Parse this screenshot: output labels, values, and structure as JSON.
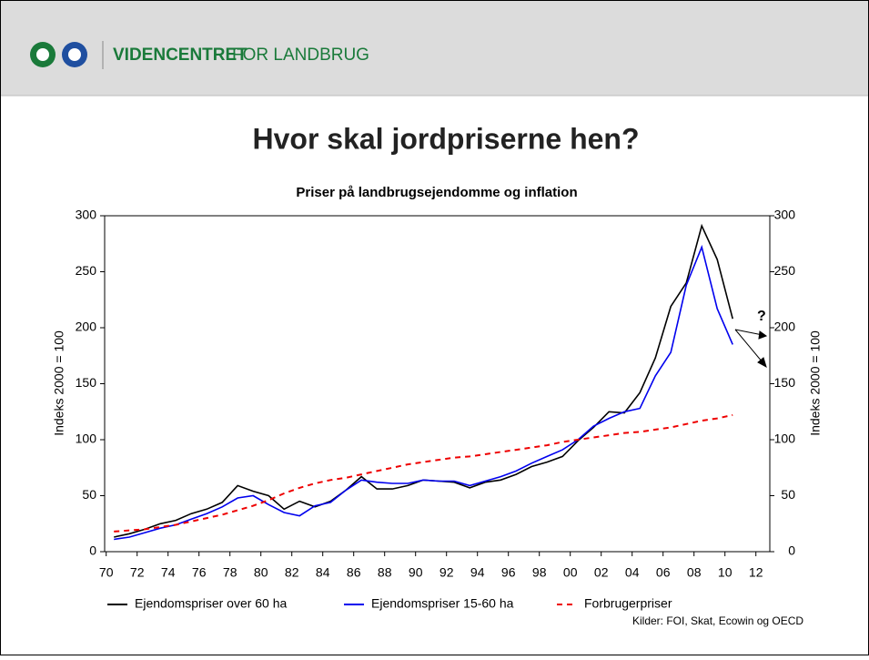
{
  "header": {
    "brand_bold": "VIDENCENTRET",
    "brand_rest": "FOR LANDBRUG"
  },
  "slide_title": "Hvor skal jordpriserne hen?",
  "chart_data": {
    "type": "line",
    "title": "Priser på landbrugsejendomme og inflation",
    "y_label": "Indeks 2000 = 100",
    "y2_label": "Indeks 2000 = 100",
    "annotation": "?",
    "source": "Kilder: FOI, Skat, Ecowin og OECD",
    "x": [
      1970.5,
      1971.5,
      1972.5,
      1973.5,
      1974.5,
      1975.5,
      1976.5,
      1977.5,
      1978.5,
      1979.5,
      1980.5,
      1981.5,
      1982.5,
      1983.5,
      1984.5,
      1985.5,
      1986.5,
      1987.5,
      1988.5,
      1989.5,
      1990.5,
      1991.5,
      1992.5,
      1993.5,
      1994.5,
      1995.5,
      1996.5,
      1997.5,
      1998.5,
      1999.5,
      2000.5,
      2001.5,
      2002.5,
      2003.5,
      2004.5,
      2005.5,
      2006.5,
      2007.5,
      2008.5,
      2009.5,
      2010.5
    ],
    "series": [
      {
        "name": "Ejendomspriser over 60 ha",
        "color": "#000000",
        "dashed": false,
        "values": [
          13,
          16,
          20,
          25,
          28,
          34,
          38,
          44,
          59,
          54,
          50,
          38,
          45,
          40,
          45,
          55,
          67,
          56,
          56,
          59,
          64,
          63,
          62,
          57,
          62,
          64,
          69,
          76,
          80,
          85,
          99,
          111,
          125,
          124,
          142,
          173,
          219,
          240,
          291,
          261,
          208
        ]
      },
      {
        "name": "Ejendomspriser 15-60 ha",
        "color": "#0000ee",
        "dashed": false,
        "values": [
          11,
          13,
          17,
          21,
          24,
          29,
          34,
          40,
          48,
          50,
          42,
          35,
          32,
          41,
          44,
          55,
          64,
          62,
          61,
          61,
          64,
          63,
          63,
          59,
          63,
          67,
          72,
          79,
          85,
          91,
          100,
          112,
          119,
          125,
          128,
          157,
          178,
          238,
          272,
          217,
          185
        ]
      },
      {
        "name": "Forbrugerpriser",
        "color": "#ee0000",
        "dashed": true,
        "values": [
          18,
          19,
          20,
          22,
          24,
          27,
          30,
          33,
          37,
          41,
          46,
          52,
          57,
          61,
          64,
          66,
          69,
          72,
          75,
          78,
          80,
          82,
          84,
          85,
          87,
          89,
          91,
          93,
          95,
          98,
          100,
          102,
          104,
          106,
          107,
          109,
          111,
          114,
          117,
          119,
          122
        ]
      }
    ],
    "xlim": [
      1969.9,
      2012.9
    ],
    "xticks": [
      {
        "value": 1970,
        "label": "70"
      },
      {
        "value": 1972,
        "label": "72"
      },
      {
        "value": 1974,
        "label": "74"
      },
      {
        "value": 1976,
        "label": "76"
      },
      {
        "value": 1978,
        "label": "78"
      },
      {
        "value": 1980,
        "label": "80"
      },
      {
        "value": 1982,
        "label": "82"
      },
      {
        "value": 1984,
        "label": "84"
      },
      {
        "value": 1986,
        "label": "86"
      },
      {
        "value": 1988,
        "label": "88"
      },
      {
        "value": 1990,
        "label": "90"
      },
      {
        "value": 1992,
        "label": "92"
      },
      {
        "value": 1994,
        "label": "94"
      },
      {
        "value": 1996,
        "label": "96"
      },
      {
        "value": 1998,
        "label": "98"
      },
      {
        "value": 2000,
        "label": "00"
      },
      {
        "value": 2002,
        "label": "02"
      },
      {
        "value": 2004,
        "label": "04"
      },
      {
        "value": 2006,
        "label": "06"
      },
      {
        "value": 2008,
        "label": "08"
      },
      {
        "value": 2010,
        "label": "10"
      },
      {
        "value": 2012,
        "label": "12"
      }
    ],
    "ylim": [
      0,
      300
    ],
    "yticks": [
      0,
      50,
      100,
      150,
      200,
      250,
      300
    ],
    "y2lim": [
      0,
      300
    ],
    "y2ticks": [
      0,
      50,
      100,
      150,
      200,
      250,
      300
    ],
    "grid": false,
    "legend": "bottom"
  }
}
